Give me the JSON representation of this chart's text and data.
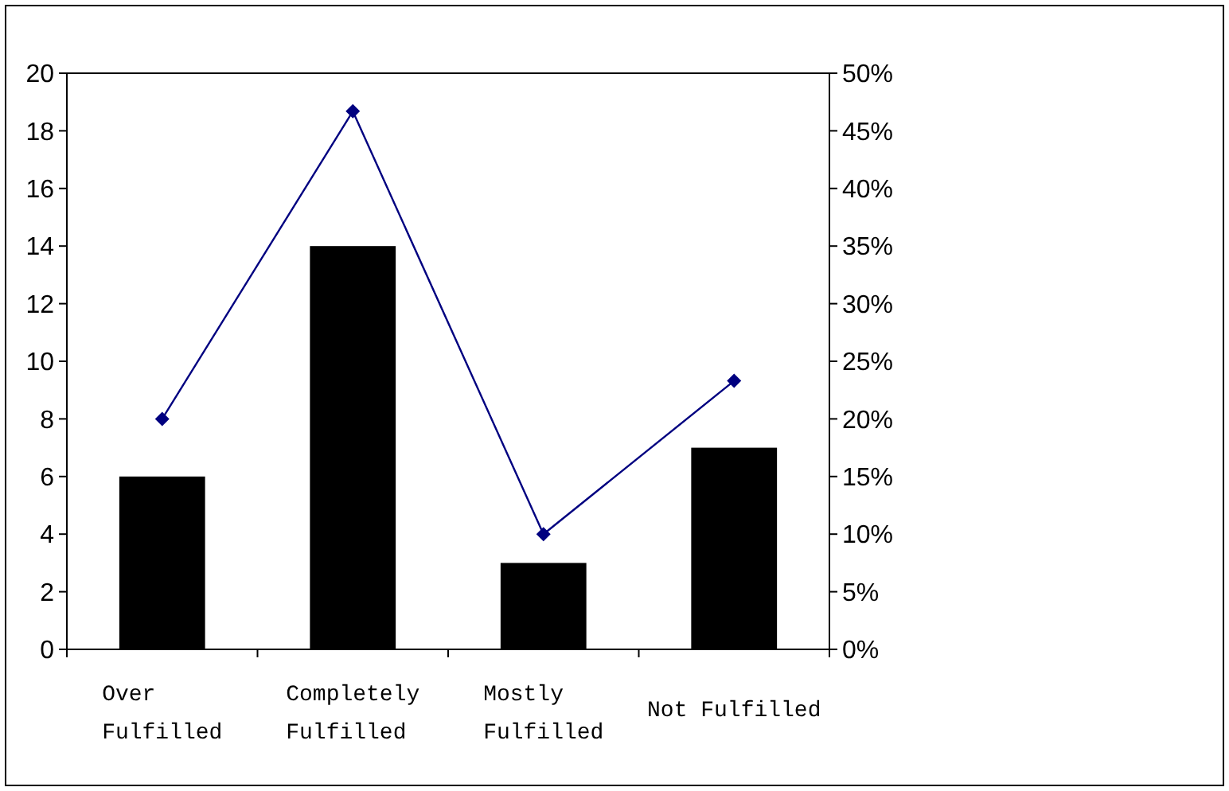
{
  "chart_data": {
    "type": "bar",
    "categories": [
      "Over\nFulfilled",
      "Completely\nFulfilled",
      "Mostly\nFulfilled",
      "Not Fulfilled"
    ],
    "series": [
      {
        "color": "#000000",
        "values": [
          6,
          14,
          3,
          7
        ]
      },
      {
        "type": "line",
        "axis": "y2",
        "color": "#000080",
        "marker": "diamond",
        "values": [
          20,
          46.7,
          10,
          23.3
        ]
      }
    ],
    "ylim": [
      0,
      20
    ],
    "yticks": [
      0,
      2,
      4,
      6,
      8,
      10,
      12,
      14,
      16,
      18,
      20
    ],
    "y2lim": [
      0,
      50
    ],
    "y2ticks": [
      {
        "value": 0,
        "label": "0%"
      },
      {
        "value": 5,
        "label": "5%"
      },
      {
        "value": 10,
        "label": "10%"
      },
      {
        "value": 15,
        "label": "15%"
      },
      {
        "value": 20,
        "label": "20%"
      },
      {
        "value": 25,
        "label": "25%"
      },
      {
        "value": 30,
        "label": "30%"
      },
      {
        "value": 35,
        "label": "35%"
      },
      {
        "value": 40,
        "label": "40%"
      },
      {
        "value": 45,
        "label": "45%"
      },
      {
        "value": 50,
        "label": "50%"
      }
    ],
    "grid": false
  }
}
